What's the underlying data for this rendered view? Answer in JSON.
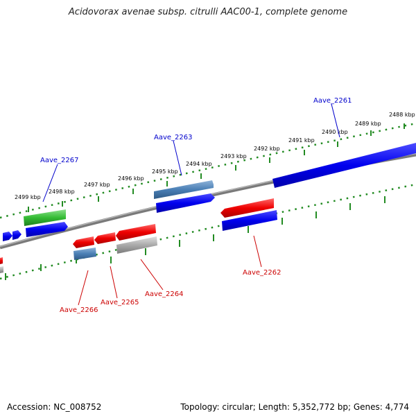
{
  "header": {
    "title": "Acidovorax avenae subsp. citrulli AAC00-1, complete genome"
  },
  "footer": {
    "accession": "Accession: NC_008752",
    "topology": "Topology: circular; Length: 5,352,772 bp; Genes: 4,774"
  },
  "scale": {
    "labels": [
      "2488 kbp",
      "2489 kbp",
      "2490 kbp",
      "2491 kbp",
      "2492 kbp",
      "2493 kbp",
      "2494 kbp",
      "2495 kbp",
      "2496 kbp",
      "2497 kbp",
      "2498 kbp",
      "2499 kbp"
    ]
  },
  "genes": [
    {
      "name": "Aave_2261",
      "strand": "top"
    },
    {
      "name": "Aave_2263",
      "strand": "top"
    },
    {
      "name": "Aave_2267",
      "strand": "top"
    },
    {
      "name": "Aave_2262",
      "strand": "bottom"
    },
    {
      "name": "Aave_2264",
      "strand": "bottom"
    },
    {
      "name": "Aave_2265",
      "strand": "bottom"
    },
    {
      "name": "Aave_2266",
      "strand": "bottom"
    }
  ],
  "colors": {
    "backbone": "#808080",
    "ruler": "#228b22",
    "cds_blue": "#0000ee",
    "cds_red": "#ee0000",
    "cds_green": "#33bb33",
    "cds_steel": "#4a7fb5",
    "cds_gray": "#aaaaaa",
    "label_top": "#0000cc",
    "label_bottom": "#cc0000"
  }
}
